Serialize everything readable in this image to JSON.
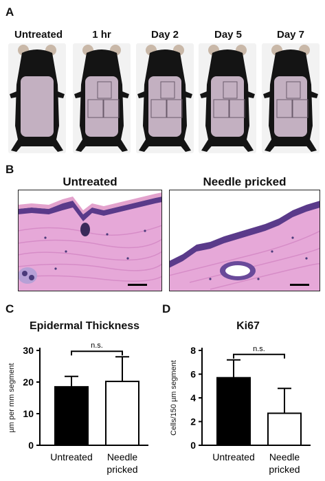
{
  "panels": {
    "a": {
      "letter": "A",
      "labels": [
        "Untreated",
        "1 hr",
        "Day 2",
        "Day 5",
        "Day 7"
      ],
      "boxes": [
        0,
        3,
        3,
        3,
        3
      ]
    },
    "b": {
      "letter": "B",
      "titles": [
        "Untreated",
        "Needle pricked"
      ]
    },
    "c": {
      "letter": "C"
    },
    "d": {
      "letter": "D"
    }
  },
  "chart_data": [
    {
      "type": "bar",
      "title": "Epidermal Thickness",
      "ylabel": "µm per mm segment",
      "categories": [
        "Untreated",
        "Needle\npricked"
      ],
      "values": [
        18.5,
        20.2
      ],
      "errors": [
        3.3,
        7.8
      ],
      "fills": [
        "#000000",
        "#ffffff"
      ],
      "ylim": [
        0,
        30
      ],
      "yticks": [
        0,
        10,
        20,
        30
      ],
      "significance": "n.s."
    },
    {
      "type": "bar",
      "title": "Ki67",
      "ylabel": "Cells/150 µm segment",
      "categories": [
        "Untreated",
        "Needle\npricked"
      ],
      "values": [
        5.7,
        2.7
      ],
      "errors": [
        1.5,
        2.1
      ],
      "fills": [
        "#000000",
        "#ffffff"
      ],
      "ylim": [
        0,
        8
      ],
      "yticks": [
        0,
        2,
        4,
        6,
        8
      ],
      "significance": "n.s."
    }
  ]
}
